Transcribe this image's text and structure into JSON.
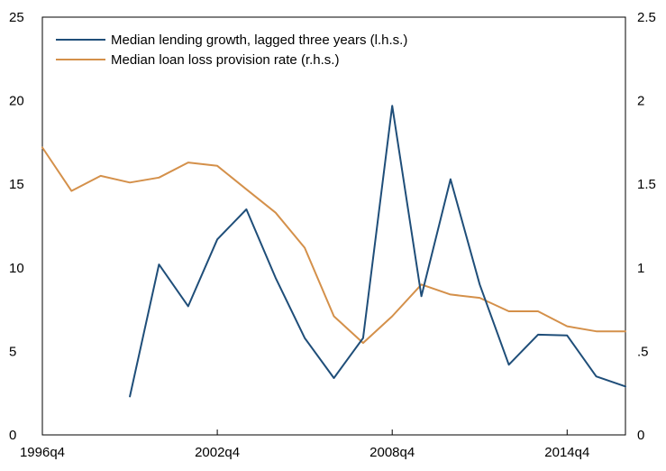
{
  "chart_data": {
    "type": "line",
    "title": "",
    "xlabel": "",
    "x": [
      "1996q4",
      "1997q4",
      "1998q4",
      "1999q4",
      "2000q4",
      "2001q4",
      "2002q4",
      "2003q4",
      "2004q4",
      "2005q4",
      "2006q4",
      "2007q4",
      "2008q4",
      "2009q4",
      "2010q4",
      "2011q4",
      "2012q4",
      "2013q4",
      "2014q4",
      "2015q4",
      "2016q4"
    ],
    "x_ticks": [
      "1996q4",
      "2002q4",
      "2008q4",
      "2014q4"
    ],
    "left_axis": {
      "label": "",
      "ylim": [
        0,
        25
      ],
      "ticks": [
        "0",
        "5",
        "10",
        "15",
        "20",
        "25"
      ],
      "tick_values": [
        0,
        5,
        10,
        15,
        20,
        25
      ]
    },
    "right_axis": {
      "label": "",
      "ylim": [
        0,
        2.5
      ],
      "ticks": [
        "0",
        ".5",
        "1",
        "1.5",
        "2",
        "2.5"
      ],
      "tick_values": [
        0,
        0.5,
        1,
        1.5,
        2,
        2.5
      ]
    },
    "grid": false,
    "legend_position": "top-left",
    "series": [
      {
        "name": "Median lending growth, lagged three years (l.h.s.)",
        "axis": "left",
        "color": "#1f4e79",
        "values": [
          null,
          null,
          null,
          2.3,
          10.2,
          7.7,
          11.7,
          13.5,
          9.4,
          5.8,
          3.4,
          5.8,
          19.7,
          8.3,
          15.3,
          9.0,
          4.2,
          6.0,
          5.95,
          3.5,
          2.9
        ]
      },
      {
        "name": "Median loan loss provision rate (r.h.s.)",
        "axis": "right",
        "color": "#d4904a",
        "values": [
          1.72,
          1.46,
          1.55,
          1.51,
          1.54,
          1.63,
          1.61,
          1.47,
          1.33,
          1.12,
          0.71,
          0.55,
          0.71,
          0.9,
          0.84,
          0.82,
          0.74,
          0.74,
          0.65,
          0.62,
          0.62
        ]
      }
    ]
  }
}
